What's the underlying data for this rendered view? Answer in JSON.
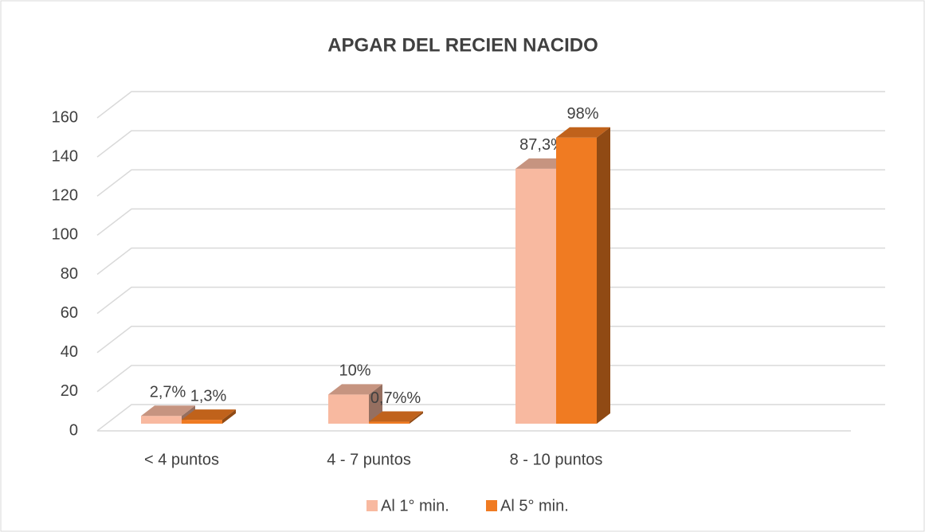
{
  "chart_data": {
    "type": "bar3d",
    "title": "APGAR DEL RECIEN NACIDO",
    "categories": [
      "< 4 puntos",
      "4 - 7 puntos",
      "8 - 10 puntos"
    ],
    "series": [
      {
        "name": "Al 1° min.",
        "color": "#f8b9a0",
        "values": [
          4,
          15,
          131
        ],
        "value_labels": [
          "2,7%",
          "10%",
          "87,3%"
        ]
      },
      {
        "name": "Al 5° min.",
        "color": "#f07b22",
        "values": [
          2,
          1,
          147
        ],
        "value_labels": [
          "1,3%",
          "0,7%%",
          "98%"
        ]
      }
    ],
    "ylim": [
      0,
      160
    ],
    "yticks": [
      0,
      20,
      40,
      60,
      80,
      100,
      120,
      140,
      160
    ],
    "grid": true,
    "legend": "bottom"
  }
}
